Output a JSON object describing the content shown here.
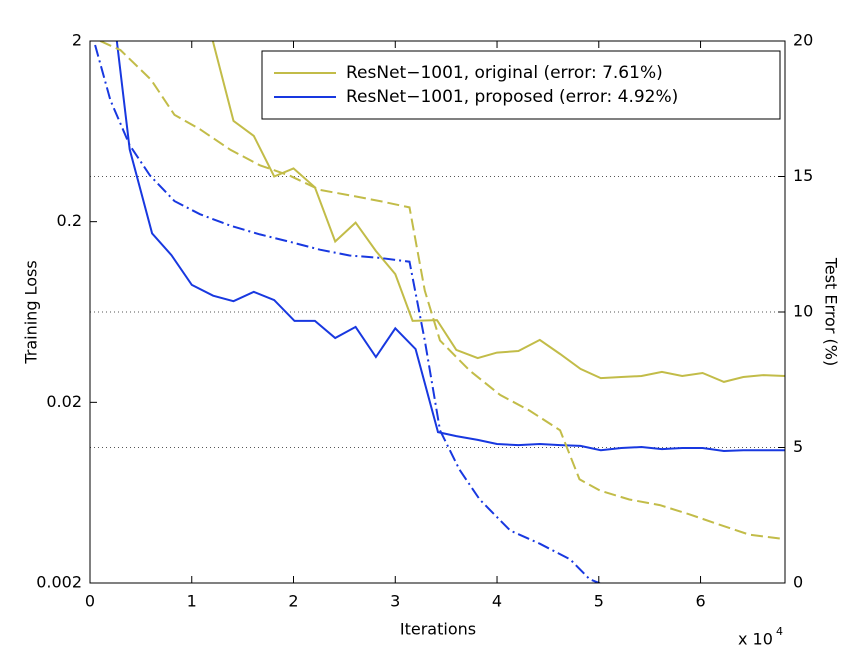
{
  "chart_data": {
    "type": "line",
    "x_label": "Iterations",
    "x_multiplier": "x 10",
    "x_multiplier_exp": "4",
    "y_label": "Training Loss",
    "y2_label": "Test Error (%)",
    "xlim": [
      0,
      68300
    ],
    "xticks": [
      0,
      {
        "value": 10000,
        "label": "1"
      },
      {
        "value": 20000,
        "label": "2"
      },
      {
        "value": 30000,
        "label": "3"
      },
      {
        "value": 40000,
        "label": "4"
      },
      {
        "value": 50000,
        "label": "5"
      },
      {
        "value": 60000,
        "label": "6"
      }
    ],
    "ylim": [
      0.002,
      2
    ],
    "yticks": [
      0.002,
      0.02,
      0.2,
      2
    ],
    "ylog": true,
    "y2lim": [
      0,
      20
    ],
    "y2ticks": [
      0,
      5,
      10,
      15,
      20
    ],
    "grid_axis": "y2",
    "legend": "upper right",
    "series": [
      {
        "name": "ResNet−1001, original (error: 7.61%)",
        "color": "#c2bc48",
        "axis": "y2",
        "dash": "solid",
        "x": [
          10000,
          14100,
          16100,
          18100,
          20000,
          22100,
          24100,
          26100,
          28100,
          30000,
          31700,
          34100,
          36000,
          38100,
          40000,
          42100,
          44200,
          46200,
          48200,
          50200,
          52200,
          54200,
          56200,
          58200,
          60200,
          62300,
          64200,
          66200,
          68300
        ],
        "values": [
          23,
          17.05,
          16.5,
          15.0,
          15.3,
          14.6,
          12.6,
          13.3,
          12.25,
          11.4,
          9.67,
          9.7,
          8.6,
          8.3,
          8.5,
          8.56,
          8.97,
          8.45,
          7.9,
          7.56,
          7.6,
          7.64,
          7.79,
          7.64,
          7.75,
          7.42,
          7.6,
          7.67,
          7.64
        ]
      },
      {
        "name": "ResNet−1001, proposed (error: 4.92%)",
        "color": "#1838e0",
        "axis": "y2",
        "dash": "solid",
        "x": [
          2000,
          3900,
          6100,
          8000,
          10000,
          12100,
          14100,
          16100,
          18100,
          20100,
          22100,
          24100,
          26100,
          28100,
          30000,
          32000,
          34200,
          36000,
          38100,
          40000,
          42100,
          44200,
          46200,
          48200,
          50200,
          52200,
          54200,
          56200,
          58200,
          60200,
          62300,
          64200,
          66200,
          68300
        ],
        "values": [
          22,
          16.0,
          12.9,
          12.1,
          11.0,
          10.6,
          10.4,
          10.74,
          10.44,
          9.67,
          9.67,
          9.04,
          9.45,
          8.34,
          9.4,
          8.63,
          5.57,
          5.42,
          5.28,
          5.13,
          5.09,
          5.13,
          5.09,
          5.06,
          4.9,
          4.98,
          5.02,
          4.94,
          4.98,
          4.98,
          4.87,
          4.9,
          4.9,
          4.9
        ]
      },
      {
        "color": "#c2bc48",
        "axis": "y",
        "dash": "dashed",
        "x": [
          1000,
          3000,
          6000,
          8300,
          10800,
          13800,
          16700,
          19600,
          22600,
          25500,
          28500,
          31400,
          32900,
          34400,
          37300,
          40300,
          43200,
          46200,
          48100,
          50100,
          53000,
          56000,
          58900,
          61900,
          64800,
          68300
        ],
        "values": [
          2.0,
          1.78,
          1.22,
          0.78,
          0.65,
          0.5,
          0.41,
          0.36,
          0.3,
          0.28,
          0.26,
          0.24,
          0.083,
          0.044,
          0.03,
          0.022,
          0.018,
          0.014,
          0.0075,
          0.0065,
          0.0058,
          0.0054,
          0.0048,
          0.0042,
          0.0037,
          0.0035
        ]
      },
      {
        "color": "#1838e0",
        "axis": "y",
        "dash": "dashdot",
        "x": [
          500,
          2000,
          3900,
          5900,
          8300,
          10800,
          13800,
          16700,
          19600,
          22600,
          25500,
          28500,
          31400,
          32900,
          34400,
          36300,
          38300,
          41300,
          44200,
          47200,
          49100,
          51000
        ],
        "values": [
          1.9,
          0.94,
          0.53,
          0.36,
          0.26,
          0.22,
          0.19,
          0.17,
          0.155,
          0.14,
          0.13,
          0.126,
          0.12,
          0.044,
          0.014,
          0.0085,
          0.0058,
          0.0039,
          0.0033,
          0.0027,
          0.0021,
          0.0019
        ]
      }
    ]
  }
}
